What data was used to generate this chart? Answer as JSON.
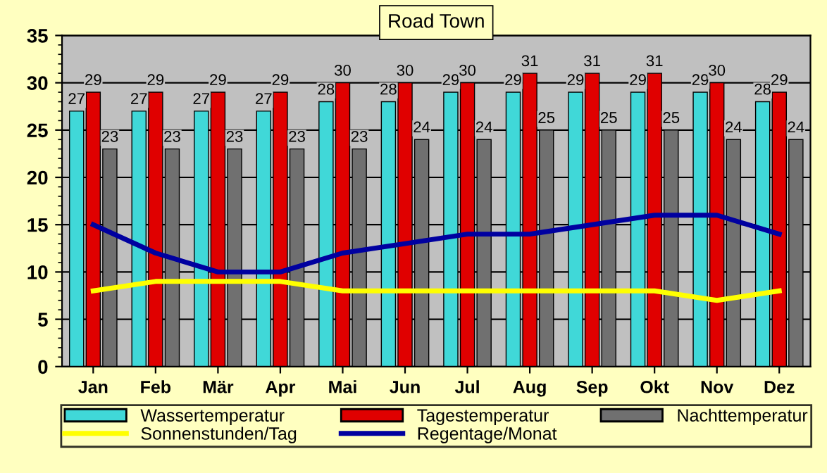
{
  "chart_data": {
    "type": "bar",
    "title": "Road Town",
    "categories": [
      "Jan",
      "Feb",
      "Mär",
      "Apr",
      "Mai",
      "Jun",
      "Jul",
      "Aug",
      "Sep",
      "Okt",
      "Nov",
      "Dez"
    ],
    "series": [
      {
        "name": "Wassertemperatur",
        "color": "#40d8d8",
        "values": [
          27,
          27,
          27,
          27,
          28,
          28,
          29,
          29,
          29,
          29,
          29,
          28
        ],
        "value_labels": [
          "27",
          "27",
          "27",
          "27",
          "28",
          "28",
          "29",
          "29",
          "29",
          "29",
          "29",
          "28"
        ]
      },
      {
        "name": "Tagestemperatur",
        "color": "#e00000",
        "values": [
          29,
          29,
          29,
          29,
          30,
          30,
          30,
          31,
          31,
          31,
          30,
          29
        ],
        "value_labels": [
          "29",
          "29",
          "29",
          "29",
          "30",
          "30",
          "30",
          "31",
          "31",
          "31",
          "30",
          "29"
        ]
      },
      {
        "name": "Nachttemperatur",
        "color": "#707070",
        "values": [
          23,
          23,
          23,
          23,
          23,
          24,
          24,
          25,
          25,
          25,
          24,
          24
        ],
        "value_labels": [
          "23",
          "23",
          "23",
          "23",
          "23",
          "24",
          "24",
          "25",
          "25",
          "25",
          "24",
          "24"
        ]
      },
      {
        "name": "Sonnenstunden/Tag",
        "type": "line",
        "color": "#ffff00",
        "values": [
          8,
          9,
          9,
          9,
          8,
          8,
          8,
          8,
          8,
          8,
          7,
          8
        ]
      },
      {
        "name": "Regentage/Monat",
        "type": "line",
        "color": "#0000a0",
        "values": [
          15,
          12,
          10,
          10,
          12,
          13,
          14,
          14,
          15,
          16,
          16,
          14
        ]
      }
    ],
    "ylim": [
      0,
      35
    ],
    "yticks": [
      0,
      5,
      10,
      15,
      20,
      25,
      30,
      35
    ],
    "grid": "y",
    "legend": "bottom",
    "marker": "none",
    "line_style": "solid"
  }
}
